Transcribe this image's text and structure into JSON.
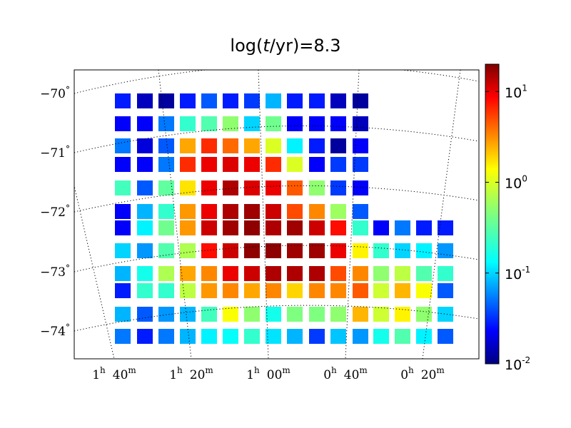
{
  "chart_data": {
    "type": "heatmap",
    "title": {
      "prefix": "log(",
      "var": "t",
      "suffix": "/yr)=8.3"
    },
    "xlabel": "",
    "ylabel": "",
    "dec_ticks": [
      {
        "deg": "−70",
        "unit": "°",
        "value": -70
      },
      {
        "deg": "−71",
        "unit": "°",
        "value": -71
      },
      {
        "deg": "−72",
        "unit": "°",
        "value": -72
      },
      {
        "deg": "−73",
        "unit": "°",
        "value": -73
      },
      {
        "deg": "−74",
        "unit": "°",
        "value": -74
      }
    ],
    "ra_ticks": [
      {
        "h": "1",
        "hu": "h",
        "m": "40",
        "mu": "m"
      },
      {
        "h": "1",
        "hu": "h",
        "m": "20",
        "mu": "m"
      },
      {
        "h": "1",
        "hu": "h",
        "m": "00",
        "mu": "m"
      },
      {
        "h": "0",
        "hu": "h",
        "m": "40",
        "mu": "m"
      },
      {
        "h": "0",
        "hu": "h",
        "m": "20",
        "mu": "m"
      }
    ],
    "colorbar": {
      "scale": "log",
      "range": [
        0.01,
        20
      ],
      "colormap": "jet",
      "ticks": [
        {
          "base": "10",
          "exp": "1",
          "value": 10
        },
        {
          "base": "10",
          "exp": "0",
          "value": 1
        },
        {
          "base": "10",
          "exp": "-1",
          "value": 0.1
        },
        {
          "base": "10",
          "exp": "-2",
          "value": 0.01
        }
      ]
    },
    "grid": "dotted",
    "rows_log10_value": [
      [
        -1.5,
        -1.8,
        -1.9,
        -1.5,
        -1.3,
        -1.5,
        -1.4,
        -1.0,
        -1.5,
        -1.5,
        -1.8,
        -1.9,
        null,
        null,
        null,
        null
      ],
      [
        -1.6,
        -1.6,
        -1.2,
        -0.6,
        -0.5,
        -0.3,
        -0.9,
        -0.4,
        -1.6,
        -1.6,
        -1.6,
        -1.8,
        null,
        null,
        null,
        null
      ],
      [
        -1.2,
        -1.7,
        -1.3,
        0.35,
        0.75,
        0.55,
        0.35,
        -0.05,
        -0.8,
        -1.5,
        -1.9,
        -1.6,
        null,
        null,
        null,
        null
      ],
      [
        -1.6,
        -1.6,
        -1.2,
        0.75,
        0.95,
        1.0,
        0.95,
        0.75,
        -0.05,
        -1.6,
        -1.4,
        -1.4,
        null,
        null,
        null,
        null
      ],
      [
        -0.55,
        -1.3,
        -0.45,
        0.15,
        0.95,
        1.15,
        1.0,
        0.95,
        0.6,
        -0.3,
        -1.4,
        -1.6,
        null,
        null,
        null,
        null
      ],
      [
        -1.6,
        -1.0,
        -0.6,
        0.4,
        0.95,
        1.15,
        1.2,
        1.05,
        0.65,
        0.45,
        -0.25,
        -1.3,
        null,
        null,
        null,
        null
      ],
      [
        -1.6,
        -0.8,
        -0.4,
        0.4,
        1.05,
        1.2,
        1.25,
        1.15,
        1.2,
        1.05,
        0.85,
        -0.6,
        -1.6,
        -1.2,
        -1.5,
        -1.5
      ],
      [
        -0.9,
        -1.1,
        -0.5,
        -0.2,
        0.85,
        1.05,
        1.25,
        1.25,
        1.2,
        1.2,
        0.95,
        0.1,
        -0.6,
        -0.9,
        -0.8,
        -1.1
      ],
      [
        -1.0,
        -0.7,
        -0.2,
        0.35,
        0.45,
        0.95,
        1.05,
        1.15,
        1.15,
        1.15,
        0.65,
        0.45,
        -0.3,
        -0.15,
        -0.5,
        -0.6
      ],
      [
        -1.5,
        -0.6,
        -0.6,
        -0.15,
        0.4,
        0.45,
        0.35,
        0.45,
        0.2,
        0.45,
        0.45,
        0.6,
        -0.1,
        0.3,
        0.05,
        -1.3
      ],
      [
        -1.0,
        -1.3,
        -1.1,
        -1.0,
        -0.55,
        0.05,
        -0.3,
        -0.7,
        -0.35,
        -0.35,
        -0.3,
        0.3,
        -0.1,
        0.1,
        -0.3,
        -0.9
      ],
      [
        -1.2,
        -1.5,
        -1.2,
        -1.0,
        -0.8,
        -0.75,
        -0.6,
        -0.85,
        -1.0,
        -1.4,
        -0.95,
        -1.1,
        -0.7,
        -0.5,
        -0.8,
        -1.3
      ]
    ]
  }
}
